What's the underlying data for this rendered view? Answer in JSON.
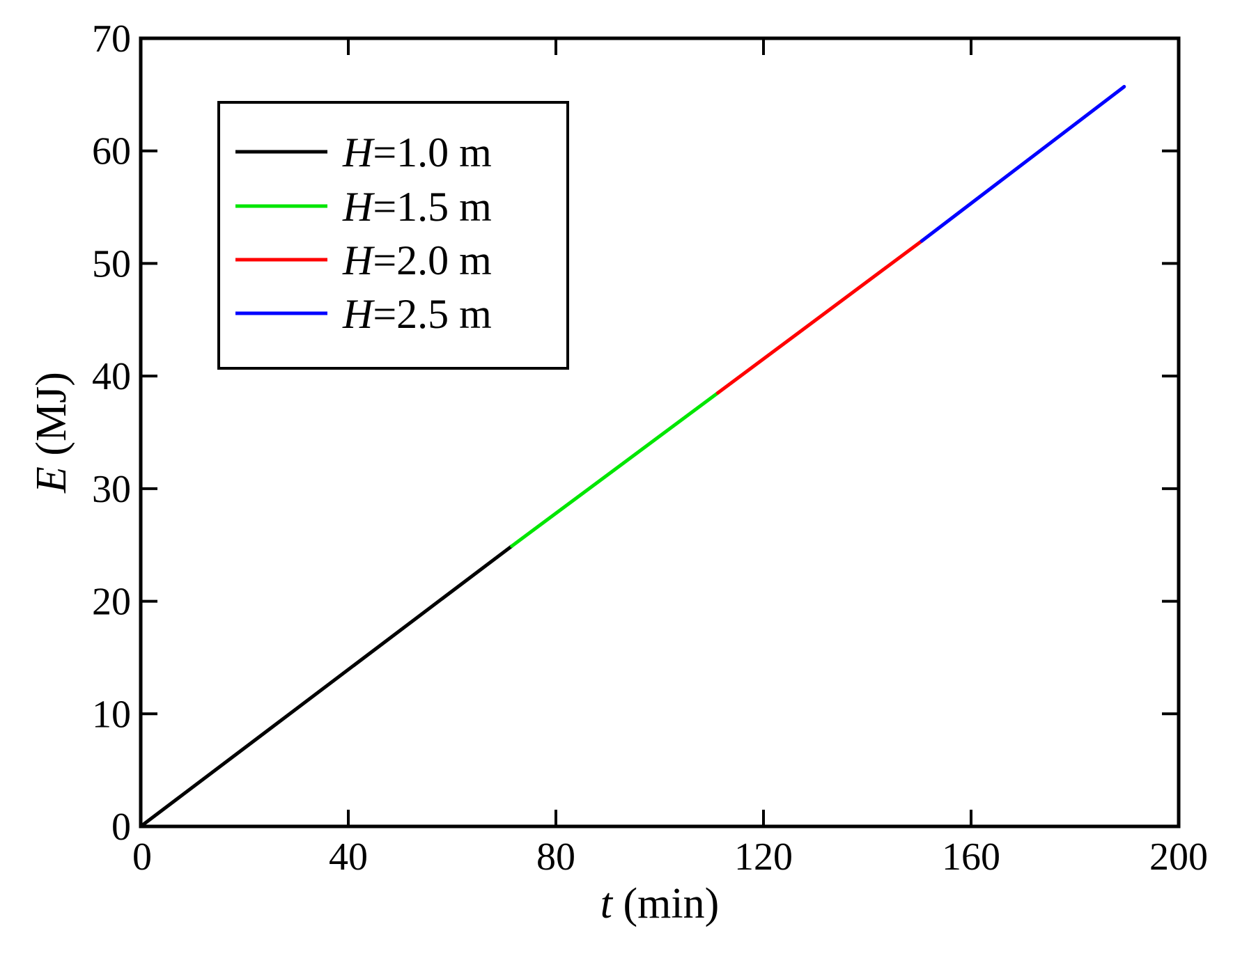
{
  "chart_data": {
    "type": "line",
    "xlabel": {
      "symbol": "t",
      "unit": " (min)"
    },
    "ylabel": {
      "symbol": "E",
      "unit": " (MJ)"
    },
    "xlim": [
      0,
      200
    ],
    "ylim": [
      0,
      70
    ],
    "x_ticks": [
      0,
      40,
      80,
      120,
      160,
      200
    ],
    "y_ticks": [
      0,
      10,
      20,
      30,
      40,
      50,
      60,
      70
    ],
    "grid": false,
    "legend_position": "top-left",
    "series": [
      {
        "name": "H=1.0 m",
        "label_symbol": "H",
        "label_rest": "=1.0 m",
        "color": "#000000",
        "x": [
          0,
          71.5
        ],
        "y": [
          0,
          24.9
        ]
      },
      {
        "name": "H=1.5 m",
        "label_symbol": "H",
        "label_rest": "=1.5 m",
        "color": "#00e600",
        "x": [
          71.5,
          111.2
        ],
        "y": [
          24.9,
          38.5
        ]
      },
      {
        "name": "H=2.0 m",
        "label_symbol": "H",
        "label_rest": "=2.0 m",
        "color": "#ff0000",
        "x": [
          111.2,
          150.5
        ],
        "y": [
          38.5,
          52.0
        ]
      },
      {
        "name": "H=2.5 m",
        "label_symbol": "H",
        "label_rest": "=2.5 m",
        "color": "#0000ff",
        "x": [
          150.5,
          189.5
        ],
        "y": [
          52.0,
          65.7
        ]
      }
    ]
  }
}
